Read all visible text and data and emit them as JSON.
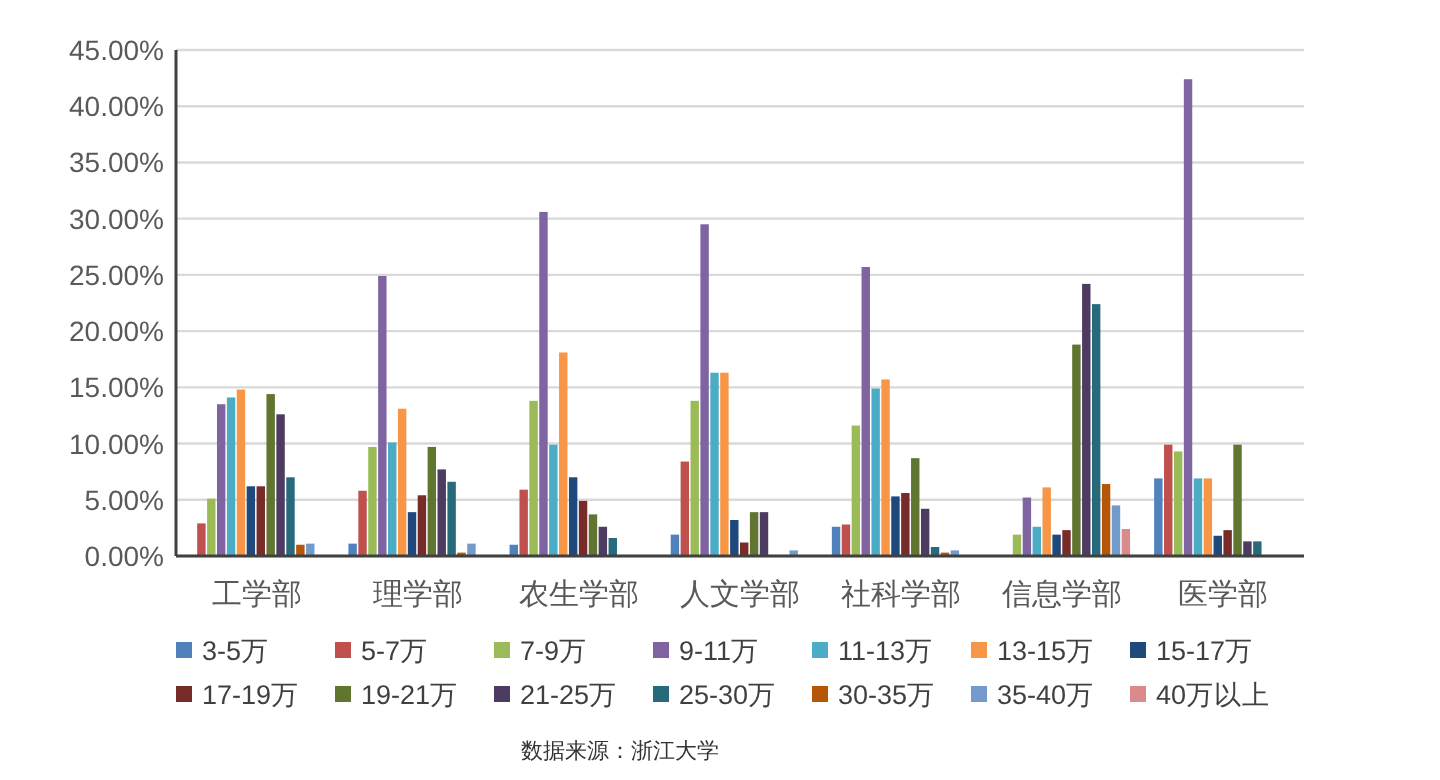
{
  "chart_data": {
    "type": "bar",
    "categories": [
      "工学部",
      "理学部",
      "农生学部",
      "人文学部",
      "社科学部",
      "信息学部",
      "医学部"
    ],
    "series": [
      {
        "name": "3-5万",
        "color": "#4f81bd",
        "values": [
          null,
          1.1,
          1.0,
          1.9,
          2.6,
          null,
          6.9
        ]
      },
      {
        "name": "5-7万",
        "color": "#c0504d",
        "values": [
          2.9,
          5.8,
          5.9,
          8.4,
          2.8,
          0,
          9.9
        ]
      },
      {
        "name": "7-9万",
        "color": "#9bbb59",
        "values": [
          5.1,
          9.7,
          13.8,
          13.8,
          11.6,
          1.9,
          9.3
        ]
      },
      {
        "name": "9-11万",
        "color": "#8064a2",
        "values": [
          13.5,
          24.9,
          30.6,
          29.5,
          25.7,
          5.2,
          42.4
        ]
      },
      {
        "name": "11-13万",
        "color": "#4bacc6",
        "values": [
          14.1,
          10.1,
          9.9,
          16.3,
          14.9,
          2.6,
          6.9
        ]
      },
      {
        "name": "13-15万",
        "color": "#f79646",
        "values": [
          14.8,
          13.1,
          18.1,
          16.3,
          15.7,
          6.1,
          6.9
        ]
      },
      {
        "name": "15-17万",
        "color": "#1f497d",
        "values": [
          6.2,
          3.9,
          7.0,
          3.2,
          5.3,
          1.9,
          1.8
        ]
      },
      {
        "name": "17-19万",
        "color": "#772c2a",
        "values": [
          6.2,
          5.4,
          4.9,
          1.2,
          5.6,
          2.3,
          2.3
        ]
      },
      {
        "name": "19-21万",
        "color": "#5f7530",
        "values": [
          14.4,
          9.7,
          3.7,
          3.9,
          8.7,
          18.8,
          9.9
        ]
      },
      {
        "name": "21-25万",
        "color": "#4d3b62",
        "values": [
          12.6,
          7.7,
          2.6,
          3.9,
          4.2,
          24.2,
          1.3
        ]
      },
      {
        "name": "25-30万",
        "color": "#276a7c",
        "values": [
          7.0,
          6.6,
          1.6,
          0,
          0.8,
          22.4,
          1.3
        ]
      },
      {
        "name": "30-35万",
        "color": "#b65708",
        "values": [
          1.0,
          0.3,
          0,
          0,
          0.3,
          6.4,
          0
        ]
      },
      {
        "name": "35-40万",
        "color": "#729aca",
        "values": [
          1.1,
          1.1,
          0,
          0.5,
          0.5,
          4.5,
          0
        ]
      },
      {
        "name": "40万以上",
        "color": "#d98b8b",
        "values": [
          null,
          0,
          0,
          0,
          null,
          2.4,
          0
        ]
      }
    ],
    "ylim": [
      0,
      45
    ],
    "yticks": [
      {
        "value": 0,
        "label": "0.00%"
      },
      {
        "value": 5,
        "label": "5.00%"
      },
      {
        "value": 10,
        "label": "10.00%"
      },
      {
        "value": 15,
        "label": "15.00%"
      },
      {
        "value": 20,
        "label": "20.00%"
      },
      {
        "value": 25,
        "label": "25.00%"
      },
      {
        "value": 30,
        "label": "30.00%"
      },
      {
        "value": 35,
        "label": "35.00%"
      },
      {
        "value": 40,
        "label": "40.00%"
      },
      {
        "value": 45,
        "label": "45.00%"
      }
    ],
    "grid": "y",
    "legend": "bottom",
    "annotations": [
      "数据来源：浙江大学"
    ]
  }
}
